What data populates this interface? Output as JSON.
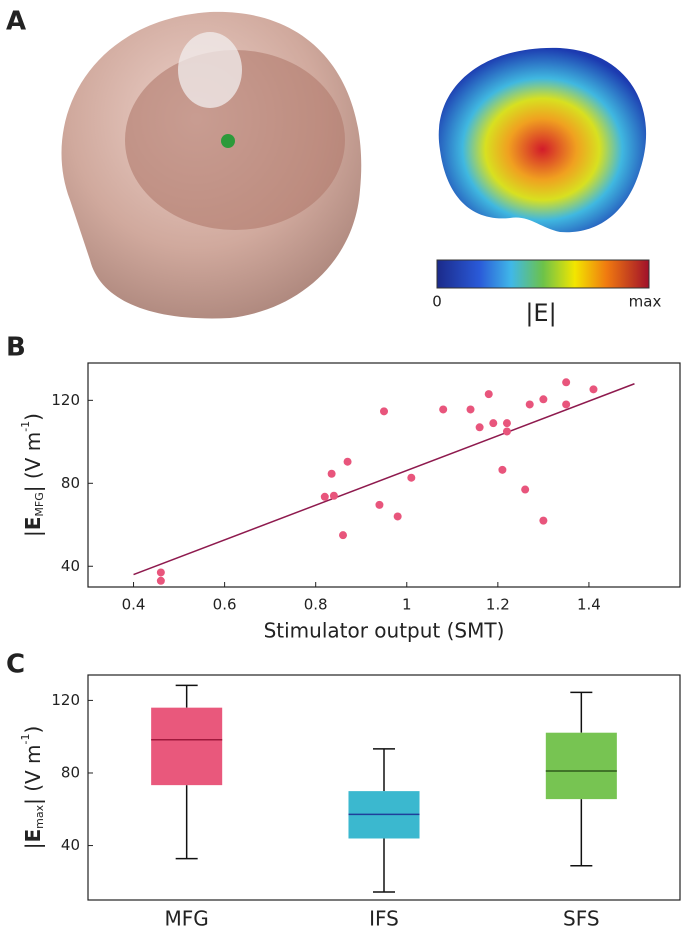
{
  "panel_labels": [
    "A",
    "B",
    "C"
  ],
  "colorbar": {
    "min_label": "0",
    "max_label": "max",
    "label": "|E|"
  },
  "chart_data": [
    {
      "type": "scatter",
      "xlabel": "Stimulator output (SMT)",
      "ylabel": {
        "pre": "|",
        "sym": "E",
        "sub": "MFG",
        "mid": "| (V m",
        "sup": "-1",
        "post": ")"
      },
      "color": "#e8557c",
      "line_color": "#8e1a4e",
      "x": [
        0.46,
        0.46,
        0.82,
        0.84,
        0.835,
        0.87,
        0.86,
        0.94,
        0.95,
        0.98,
        1.01,
        1.08,
        1.14,
        1.16,
        1.18,
        1.19,
        1.21,
        1.22,
        1.22,
        1.26,
        1.27,
        1.3,
        1.3,
        1.35,
        1.35,
        1.41
      ],
      "values": [
        37,
        33,
        73.5,
        74,
        84.6,
        90.4,
        55,
        69.6,
        114.7,
        64,
        82.7,
        115.6,
        115.6,
        107,
        123,
        109,
        86.5,
        109,
        105,
        77,
        118,
        120.5,
        62,
        128.7,
        118,
        125.3
      ],
      "fit": {
        "x": [
          0.4,
          1.5
        ],
        "y": [
          36,
          128
        ]
      },
      "xlim": [
        0.3,
        1.6
      ],
      "xticks": [
        0.4,
        0.6,
        0.8,
        1.0,
        1.2,
        1.4
      ],
      "ylim": [
        30,
        138
      ],
      "yticks": [
        40,
        80,
        120
      ]
    },
    {
      "type": "box",
      "ylabel": {
        "pre": "|",
        "sym": "E",
        "sub": "max",
        "mid": "| (V m",
        "sup": "-1",
        "post": ")"
      },
      "categories": [
        "MFG",
        "IFS",
        "SFS"
      ],
      "whisker_low": [
        32.8,
        14.4,
        28.9
      ],
      "q1": [
        73.3,
        43.9,
        65.6
      ],
      "median": [
        98.3,
        57.2,
        81.1
      ],
      "q3": [
        116,
        70,
        102.2
      ],
      "whisker_high": [
        128.3,
        93.3,
        124.4
      ],
      "colors": [
        "#e9587c",
        "#3bb8cf",
        "#77c452"
      ],
      "median_colors": [
        "#a0183c",
        "#1f3f9a",
        "#2f5a1a"
      ],
      "ylim": [
        10,
        134
      ],
      "yticks": [
        40,
        80,
        120
      ]
    }
  ]
}
